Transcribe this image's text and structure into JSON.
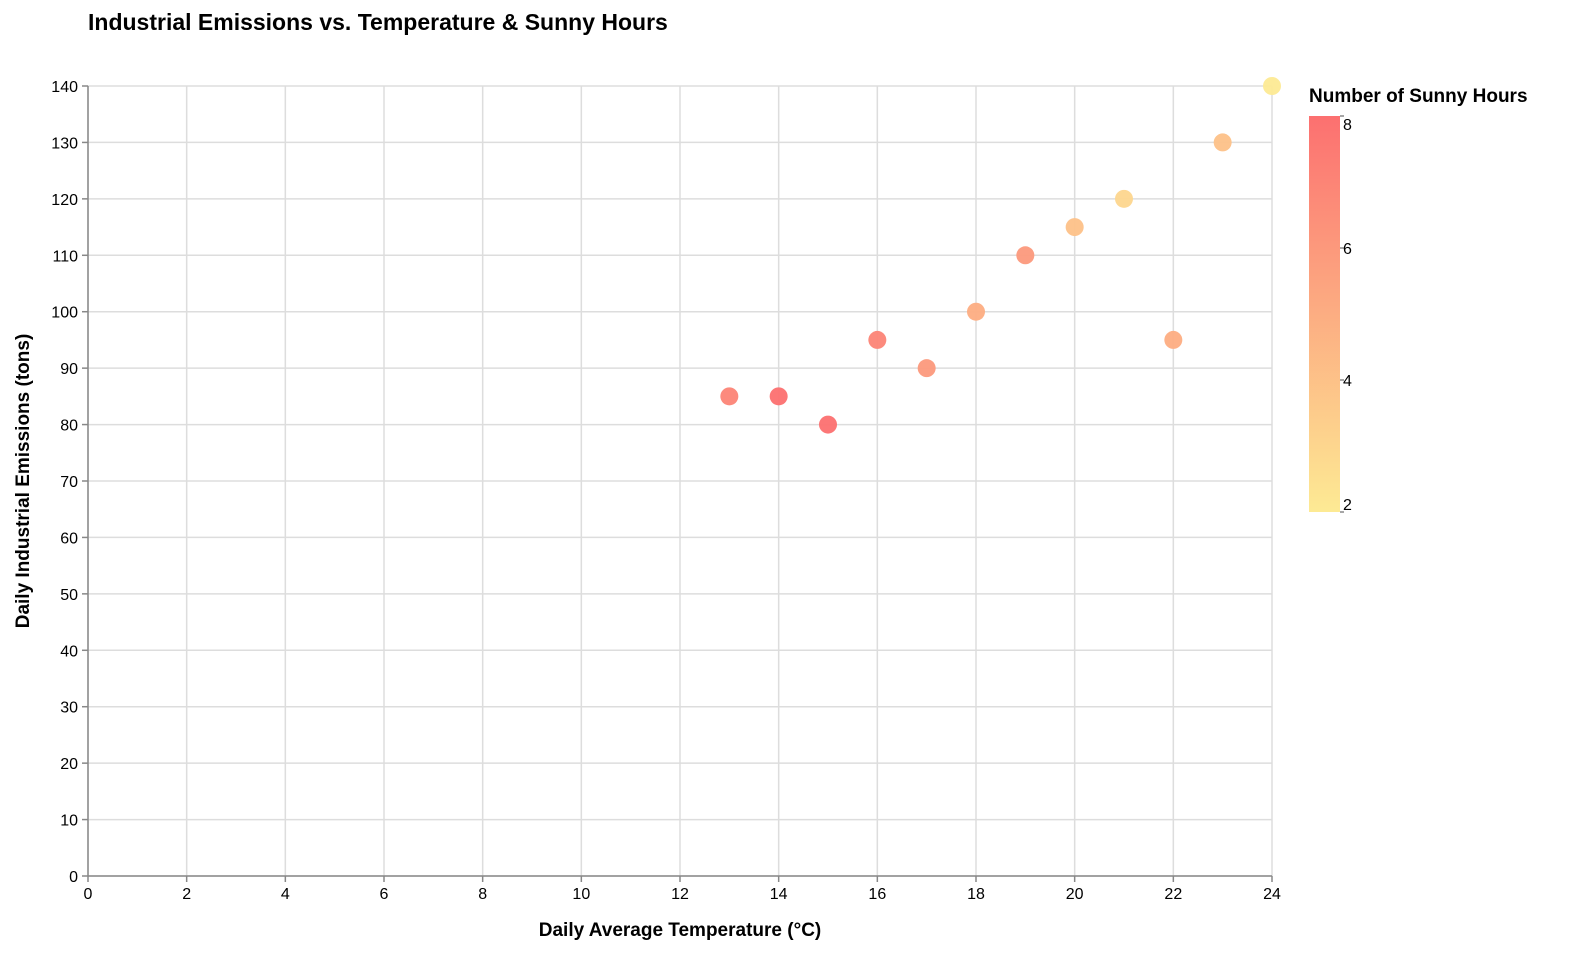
{
  "chart_data": {
    "type": "scatter",
    "title": "Industrial Emissions vs. Temperature & Sunny Hours",
    "xlabel": "Daily Average Temperature (°C)",
    "ylabel": "Daily Industrial Emissions (tons)",
    "xlim": [
      0,
      24
    ],
    "ylim": [
      0,
      140
    ],
    "x_ticks": [
      "0",
      "2",
      "4",
      "6",
      "8",
      "10",
      "12",
      "14",
      "16",
      "18",
      "20",
      "22",
      "24"
    ],
    "y_ticks": [
      "0",
      "10",
      "20",
      "30",
      "40",
      "50",
      "60",
      "70",
      "80",
      "90",
      "100",
      "110",
      "120",
      "130",
      "140"
    ],
    "grid": true,
    "legend": {
      "title": "Number of Sunny Hours",
      "placement": "right",
      "type": "gradient",
      "range": [
        2,
        8
      ],
      "ticks": [
        "2",
        "4",
        "6",
        "8"
      ],
      "color_low": "#fdea94",
      "color_high": "#fc7070"
    },
    "points": [
      {
        "x": 13,
        "y": 85,
        "sunny_hours": 7
      },
      {
        "x": 14,
        "y": 85,
        "sunny_hours": 8
      },
      {
        "x": 15,
        "y": 80,
        "sunny_hours": 8
      },
      {
        "x": 16,
        "y": 95,
        "sunny_hours": 7
      },
      {
        "x": 17,
        "y": 90,
        "sunny_hours": 6
      },
      {
        "x": 18,
        "y": 100,
        "sunny_hours": 5
      },
      {
        "x": 19,
        "y": 110,
        "sunny_hours": 6
      },
      {
        "x": 20,
        "y": 115,
        "sunny_hours": 4
      },
      {
        "x": 21,
        "y": 120,
        "sunny_hours": 3
      },
      {
        "x": 22,
        "y": 95,
        "sunny_hours": 5
      },
      {
        "x": 23,
        "y": 130,
        "sunny_hours": 4
      },
      {
        "x": 24,
        "y": 140,
        "sunny_hours": 2
      }
    ]
  }
}
